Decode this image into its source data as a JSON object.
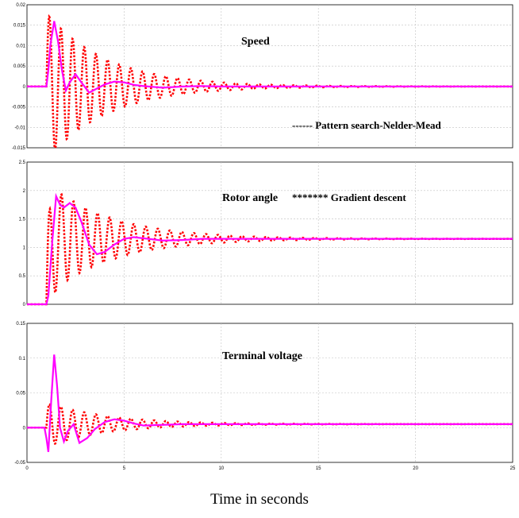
{
  "figure": {
    "xlabel": "Time in seconds",
    "xticks": [
      "0",
      "5",
      "10",
      "15",
      "20",
      "25"
    ],
    "legend_lines": [
      "------ Pattern search-Nelder-Mead",
      "******* Gradient descent"
    ],
    "colors": {
      "solid": "#ff00ff",
      "dotted": "#ff0000",
      "grid": "#c0c0c0"
    }
  },
  "chart_data": [
    {
      "type": "line",
      "title": "Speed",
      "xlim": [
        0,
        25
      ],
      "ylim": [
        -0.015,
        0.02
      ],
      "yticks": [
        "0.02",
        "0.015",
        "0.01",
        "0.005",
        "0",
        "-0.005",
        "-0.01",
        "-0.015"
      ],
      "grid": true,
      "series": [
        {
          "style": "solid",
          "x": [
            0,
            1,
            1.1,
            1.2,
            1.4,
            1.6,
            1.8,
            2.0,
            2.2,
            2.5,
            2.8,
            3.2,
            3.6,
            4.0,
            4.5,
            5.0,
            5.5,
            6,
            7,
            8,
            9,
            10,
            12,
            25
          ],
          "y": [
            0,
            0,
            0.004,
            0.01,
            0.016,
            0.011,
            0.004,
            -0.001,
            0.001,
            0.003,
            0.001,
            -0.0015,
            -0.0005,
            0.0005,
            0.0012,
            0.001,
            0.0004,
            0.0001,
            -0.0003,
            0,
            0.0001,
            0,
            0,
            0
          ]
        },
        {
          "style": "dotted",
          "amplitude": 0.018,
          "decay": 0.32,
          "period": 0.6
        }
      ]
    },
    {
      "type": "line",
      "title": "Rotor angle",
      "xlim": [
        0,
        25
      ],
      "ylim": [
        0,
        2.5
      ],
      "yticks": [
        "2.5",
        "2",
        "1.5",
        "1",
        "0.5",
        "0"
      ],
      "grid": true,
      "series": [
        {
          "style": "solid",
          "x": [
            0,
            1,
            1.1,
            1.3,
            1.5,
            1.7,
            1.9,
            2.2,
            2.5,
            2.8,
            3.2,
            3.6,
            4.0,
            4.5,
            5.0,
            5.5,
            6.0,
            7,
            8,
            9,
            10,
            12,
            25
          ],
          "y": [
            0,
            0,
            0.15,
            1.1,
            1.9,
            1.75,
            1.7,
            1.78,
            1.7,
            1.45,
            1.05,
            0.88,
            0.92,
            1.05,
            1.15,
            1.18,
            1.16,
            1.12,
            1.13,
            1.15,
            1.15,
            1.15,
            1.15
          ]
        },
        {
          "style": "dotted",
          "base": 1.15,
          "amplitude": 1.0,
          "decay": 0.3,
          "period": 0.62
        }
      ]
    },
    {
      "type": "line",
      "title": "Terminal voltage",
      "xlim": [
        0,
        25
      ],
      "ylim": [
        -0.05,
        0.15
      ],
      "yticks": [
        "0.15",
        "0.1",
        "0.05",
        "0",
        "-0.05"
      ],
      "grid": true,
      "series": [
        {
          "style": "solid",
          "x": [
            0,
            0.9,
            1.0,
            1.1,
            1.25,
            1.4,
            1.55,
            1.7,
            1.9,
            2.1,
            2.4,
            2.7,
            3.1,
            3.5,
            4.0,
            4.5,
            5.0,
            5.5,
            6.0,
            7,
            8,
            10,
            12,
            25
          ],
          "y": [
            0,
            0,
            -0.015,
            -0.035,
            0.04,
            0.105,
            0.06,
            0.0,
            -0.02,
            -0.005,
            0.005,
            -0.022,
            -0.015,
            -0.002,
            0.008,
            0.012,
            0.01,
            0.006,
            0.003,
            0.004,
            0.005,
            0.005,
            0.005,
            0.005
          ]
        },
        {
          "style": "dotted",
          "base": 0.005,
          "amplitude": 0.032,
          "decay": 0.32,
          "period": 0.6
        }
      ]
    }
  ]
}
